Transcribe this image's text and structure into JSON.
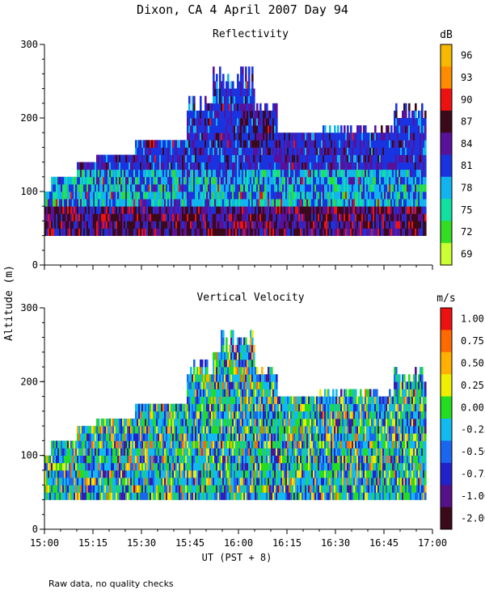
{
  "figure_title": "Dixon, CA   4 April 2007   Day  94",
  "shared_ylabel": "Altitude (m)",
  "shared_xlabel": "UT  (PST + 8)",
  "footer_note": "Raw data, no quality checks",
  "chart_data": [
    {
      "type": "heatmap",
      "title": "Reflectivity",
      "units": "dB",
      "x_time_ticks": [
        "15:00",
        "15:15",
        "15:30",
        "15:45",
        "16:00",
        "16:15",
        "16:30",
        "16:45",
        "17:00"
      ],
      "xlim_minutes_after_15UT": [
        0,
        120
      ],
      "ylim_m": [
        0,
        300
      ],
      "y_ticks": [
        "0",
        "100",
        "200",
        "300"
      ],
      "data_altitude_range_m": [
        40,
        280
      ],
      "colorbar_labels": [
        "96",
        "93",
        "90",
        "87",
        "84",
        "81",
        "78",
        "75",
        "72",
        "69"
      ],
      "colorbar_colors": [
        "#f6b800",
        "#ff8c00",
        "#ee1111",
        "#3b0a1a",
        "#5a1199",
        "#1a33e0",
        "#11b4ee",
        "#11e0a0",
        "#33dd22",
        "#ccff33"
      ]
    },
    {
      "type": "heatmap",
      "title": "Vertical Velocity",
      "units": "m/s",
      "x_time_ticks": [
        "15:00",
        "15:15",
        "15:30",
        "15:45",
        "16:00",
        "16:15",
        "16:30",
        "16:45",
        "17:00"
      ],
      "xlim_minutes_after_15UT": [
        0,
        120
      ],
      "ylim_m": [
        0,
        300
      ],
      "y_ticks": [
        "0",
        "100",
        "200",
        "300"
      ],
      "data_altitude_range_m": [
        40,
        280
      ],
      "colorbar_labels": [
        "1.00",
        "0.75",
        "0.50",
        "0.25",
        "0.00",
        "-0.25",
        "-0.50",
        "-0.75",
        "-1.00",
        "-2.00"
      ],
      "colorbar_colors": [
        "#ee1111",
        "#ff6a00",
        "#ffb000",
        "#eeee00",
        "#22dd22",
        "#11bbee",
        "#1a66ee",
        "#2222cc",
        "#551188",
        "#3b0a1a"
      ]
    }
  ]
}
